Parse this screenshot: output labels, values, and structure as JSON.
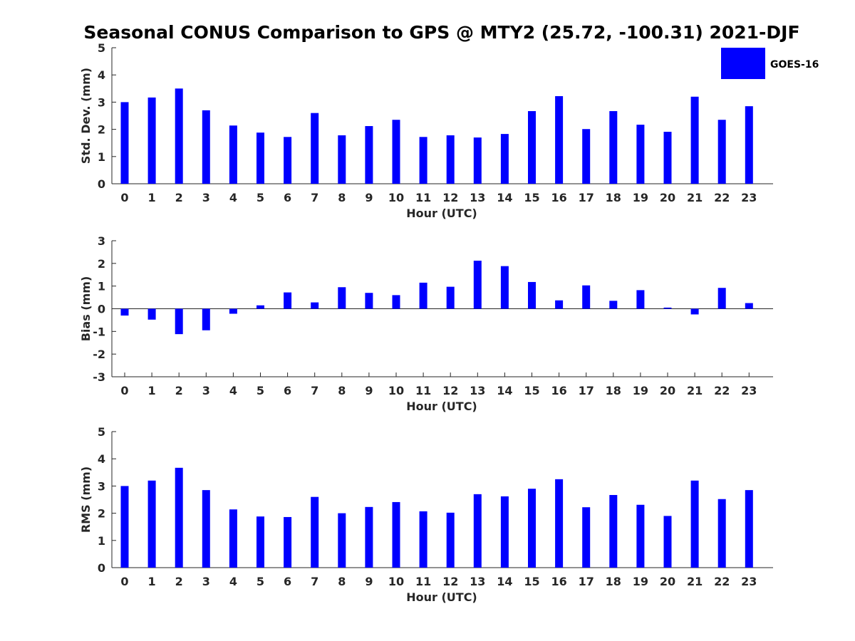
{
  "title": "Seasonal CONUS Comparison to GPS @ MTY2 (25.72, -100.31) 2021-DJF",
  "legend": {
    "label": "GOES-16",
    "color": "#0000ff"
  },
  "chart_data": [
    {
      "type": "bar",
      "ylabel": "Std. Dev. (mm)",
      "xlabel": "Hour (UTC)",
      "ylim": [
        0,
        5
      ],
      "yticks": [
        "0",
        "1",
        "2",
        "3",
        "4",
        "5"
      ],
      "categories": [
        "0",
        "1",
        "2",
        "3",
        "4",
        "5",
        "6",
        "7",
        "8",
        "9",
        "10",
        "11",
        "12",
        "13",
        "14",
        "15",
        "16",
        "17",
        "18",
        "19",
        "20",
        "21",
        "22",
        "23"
      ],
      "series": [
        {
          "name": "GOES-16",
          "values": [
            3.0,
            3.17,
            3.5,
            2.7,
            2.14,
            1.88,
            1.72,
            2.6,
            1.78,
            2.12,
            2.35,
            1.72,
            1.78,
            1.7,
            1.83,
            2.67,
            3.22,
            2.01,
            2.67,
            2.17,
            1.91,
            3.2,
            2.35,
            2.85
          ]
        }
      ]
    },
    {
      "type": "bar",
      "ylabel": "Bias (mm)",
      "xlabel": "Hour (UTC)",
      "ylim": [
        -3,
        3
      ],
      "yticks": [
        "-3",
        "-2",
        "-1",
        "0",
        "1",
        "2",
        "3"
      ],
      "categories": [
        "0",
        "1",
        "2",
        "3",
        "4",
        "5",
        "6",
        "7",
        "8",
        "9",
        "10",
        "11",
        "12",
        "13",
        "14",
        "15",
        "16",
        "17",
        "18",
        "19",
        "20",
        "21",
        "22",
        "23"
      ],
      "series": [
        {
          "name": "GOES-16",
          "values": [
            -0.3,
            -0.48,
            -1.12,
            -0.95,
            -0.22,
            0.15,
            0.72,
            0.28,
            0.95,
            0.7,
            0.6,
            1.15,
            0.97,
            2.12,
            1.88,
            1.18,
            0.37,
            1.03,
            0.35,
            0.82,
            0.05,
            -0.25,
            0.92,
            0.25
          ]
        }
      ]
    },
    {
      "type": "bar",
      "ylabel": "RMS (mm)",
      "xlabel": "Hour (UTC)",
      "ylim": [
        0,
        5
      ],
      "yticks": [
        "0",
        "1",
        "2",
        "3",
        "4",
        "5"
      ],
      "categories": [
        "0",
        "1",
        "2",
        "3",
        "4",
        "5",
        "6",
        "7",
        "8",
        "9",
        "10",
        "11",
        "12",
        "13",
        "14",
        "15",
        "16",
        "17",
        "18",
        "19",
        "20",
        "21",
        "22",
        "23"
      ],
      "series": [
        {
          "name": "GOES-16",
          "values": [
            3.0,
            3.2,
            3.67,
            2.85,
            2.14,
            1.88,
            1.86,
            2.6,
            2.0,
            2.23,
            2.41,
            2.07,
            2.02,
            2.7,
            2.62,
            2.9,
            3.25,
            2.22,
            2.67,
            2.31,
            1.9,
            3.2,
            2.52,
            2.85
          ]
        }
      ]
    }
  ]
}
